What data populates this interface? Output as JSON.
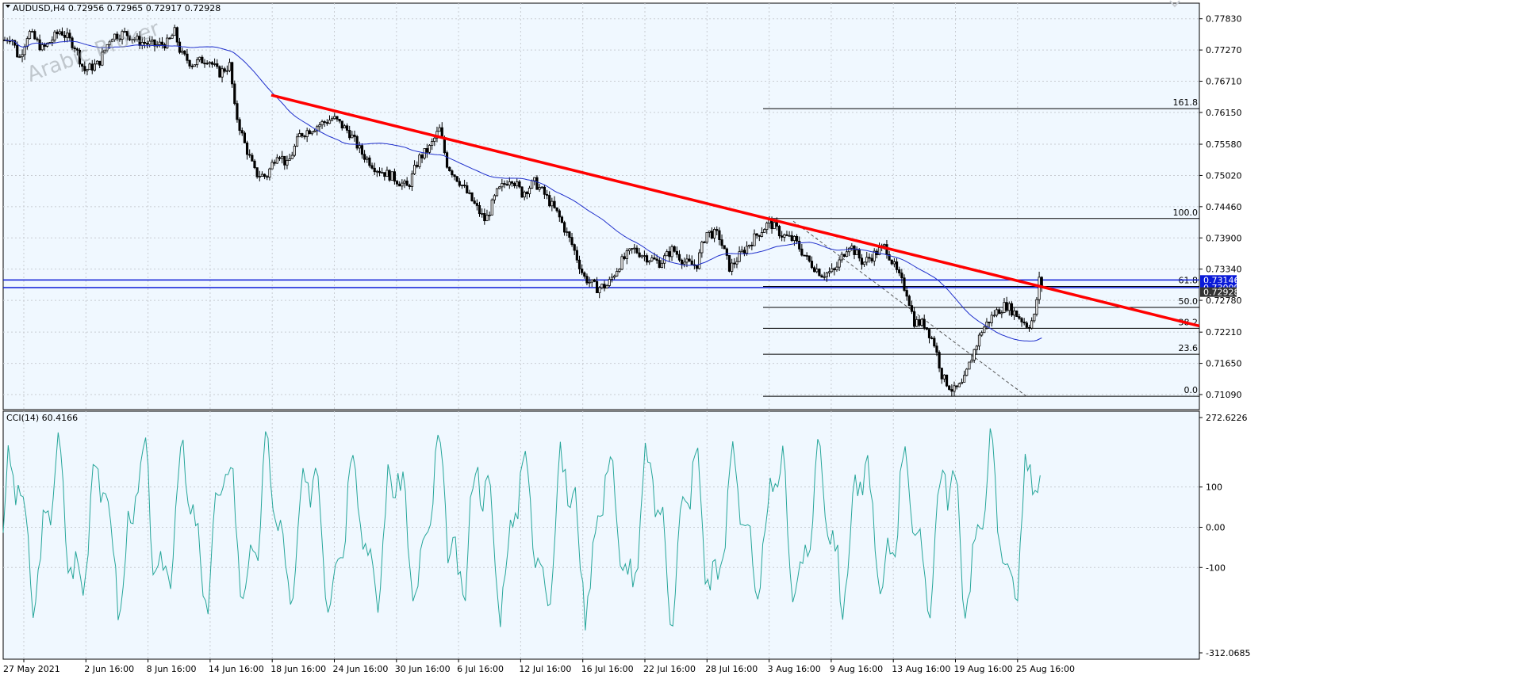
{
  "header": {
    "symbol_info": "AUDUSD,H4  0.72956 0.72965 0.72917 0.72928",
    "watermark": "Arabic Broker"
  },
  "colors": {
    "background": "#f0f8ff",
    "grid": "#c8ccd2",
    "candle": "#000000",
    "moving_average": "#1f2fcc",
    "trendline": "#ff0000",
    "support_lines": "#0a1ad8",
    "fibonacci": "#000000",
    "cci": "#26a69a",
    "price_label_bg": "#0a1ad8"
  },
  "main_chart": {
    "price_axis": {
      "min": 0.7082,
      "max": 0.7811,
      "ticks": [
        "0.77830",
        "0.77270",
        "0.76710",
        "0.76150",
        "0.75580",
        "0.75020",
        "0.74460",
        "0.73900",
        "0.73340",
        "0.72780",
        "0.72210",
        "0.71650",
        "0.71090"
      ]
    },
    "price_labels": [
      {
        "text": "0.73146",
        "price": 0.73146
      },
      {
        "text": "0.73009",
        "price": 0.73009
      },
      {
        "text": "0.72928",
        "price": 0.72928
      }
    ],
    "fib_levels": [
      {
        "label": "161.8",
        "price": 0.76218
      },
      {
        "label": "100.0",
        "price": 0.74248
      },
      {
        "label": "61.8",
        "price": 0.7303
      },
      {
        "label": "50.0",
        "price": 0.72654
      },
      {
        "label": "38.2",
        "price": 0.72278
      },
      {
        "label": "23.6",
        "price": 0.71813
      },
      {
        "label": "0.0",
        "price": 0.7106
      }
    ],
    "horizontal_lines": [
      0.73146,
      0.73009
    ]
  },
  "cci_panel": {
    "title": "CCI(14) 60.4166",
    "min": -312.0685,
    "max": 272.6226,
    "ticks": [
      "272.6226",
      "100",
      "0.00",
      "-100",
      "-312.0685"
    ],
    "tick_values": [
      272.6226,
      100,
      0,
      -100,
      -312.0685
    ]
  },
  "time_axis": {
    "labels": [
      "27 May 2021",
      "2 Jun 16:00",
      "8 Jun 16:00",
      "14 Jun 16:00",
      "18 Jun 16:00",
      "24 Jun 16:00",
      "30 Jun 16:00",
      "6 Jul 16:00",
      "12 Jul 16:00",
      "16 Jul 16:00",
      "22 Jul 16:00",
      "28 Jul 16:00",
      "3 Aug 16:00",
      "9 Aug 16:00",
      "13 Aug 16:00",
      "19 Aug 16:00",
      "25 Aug 16:00"
    ]
  },
  "chart_data": {
    "type": "line",
    "symbol": "AUDUSD",
    "timeframe": "H4",
    "title": "AUDUSD,H4",
    "ylabel": "",
    "xlabel": "",
    "ylim": [
      0.7082,
      0.7811
    ],
    "grid": true,
    "x": [
      "27 May 2021",
      "2 Jun 16:00",
      "8 Jun 16:00",
      "14 Jun 16:00",
      "18 Jun 16:00",
      "24 Jun 16:00",
      "30 Jun 16:00",
      "6 Jul 16:00",
      "12 Jul 16:00",
      "16 Jul 16:00",
      "22 Jul 16:00",
      "28 Jul 16:00",
      "3 Aug 16:00",
      "9 Aug 16:00",
      "13 Aug 16:00",
      "19 Aug 16:00",
      "25 Aug 16:00"
    ],
    "series": [
      {
        "values": [
          0.774,
          0.7725,
          0.7745,
          0.77,
          0.7505,
          0.758,
          0.748,
          0.7545,
          0.746,
          0.73,
          0.737,
          0.7375,
          0.7415,
          0.732,
          0.731,
          0.7135,
          0.7275
        ]
      }
    ],
    "price_path": [
      [
        0,
        0.7745
      ],
      [
        8,
        0.7752
      ],
      [
        18,
        0.771
      ],
      [
        30,
        0.776
      ],
      [
        48,
        0.7728
      ],
      [
        70,
        0.7762
      ],
      [
        88,
        0.7735
      ],
      [
        100,
        0.769
      ],
      [
        118,
        0.7702
      ],
      [
        134,
        0.7752
      ],
      [
        152,
        0.7757
      ],
      [
        170,
        0.7742
      ],
      [
        190,
        0.7735
      ],
      [
        206,
        0.774
      ],
      [
        214,
        0.776
      ],
      [
        222,
        0.772
      ],
      [
        236,
        0.7702
      ],
      [
        256,
        0.7712
      ],
      [
        270,
        0.7685
      ],
      [
        284,
        0.77
      ],
      [
        290,
        0.762
      ],
      [
        302,
        0.756
      ],
      [
        316,
        0.7505
      ],
      [
        330,
        0.75
      ],
      [
        344,
        0.7545
      ],
      [
        356,
        0.752
      ],
      [
        372,
        0.7575
      ],
      [
        392,
        0.759
      ],
      [
        414,
        0.7605
      ],
      [
        434,
        0.758
      ],
      [
        450,
        0.7542
      ],
      [
        468,
        0.7515
      ],
      [
        488,
        0.75
      ],
      [
        508,
        0.748
      ],
      [
        522,
        0.7532
      ],
      [
        536,
        0.7552
      ],
      [
        548,
        0.7585
      ],
      [
        558,
        0.752
      ],
      [
        574,
        0.749
      ],
      [
        592,
        0.745
      ],
      [
        606,
        0.742
      ],
      [
        620,
        0.747
      ],
      [
        638,
        0.75
      ],
      [
        652,
        0.747
      ],
      [
        668,
        0.749
      ],
      [
        682,
        0.7465
      ],
      [
        698,
        0.743
      ],
      [
        716,
        0.7375
      ],
      [
        730,
        0.732
      ],
      [
        746,
        0.73
      ],
      [
        760,
        0.7305
      ],
      [
        776,
        0.7345
      ],
      [
        792,
        0.737
      ],
      [
        810,
        0.7355
      ],
      [
        826,
        0.7345
      ],
      [
        842,
        0.737
      ],
      [
        858,
        0.7345
      ],
      [
        872,
        0.734
      ],
      [
        884,
        0.74
      ],
      [
        900,
        0.7395
      ],
      [
        914,
        0.7335
      ],
      [
        930,
        0.7365
      ],
      [
        948,
        0.7395
      ],
      [
        964,
        0.7418
      ],
      [
        980,
        0.7395
      ],
      [
        996,
        0.7385
      ],
      [
        1012,
        0.735
      ],
      [
        1030,
        0.7325
      ],
      [
        1046,
        0.733
      ],
      [
        1064,
        0.738
      ],
      [
        1082,
        0.7345
      ],
      [
        1100,
        0.7365
      ],
      [
        1110,
        0.7375
      ],
      [
        1124,
        0.733
      ],
      [
        1138,
        0.729
      ],
      [
        1146,
        0.724
      ],
      [
        1160,
        0.7235
      ],
      [
        1172,
        0.72
      ],
      [
        1182,
        0.714
      ],
      [
        1196,
        0.7115
      ],
      [
        1208,
        0.7128
      ],
      [
        1220,
        0.718
      ],
      [
        1232,
        0.7225
      ],
      [
        1248,
        0.7255
      ],
      [
        1262,
        0.727
      ],
      [
        1276,
        0.7252
      ],
      [
        1290,
        0.7232
      ],
      [
        1298,
        0.7248
      ],
      [
        1304,
        0.7314
      ],
      [
        1312,
        0.7293
      ]
    ]
  }
}
